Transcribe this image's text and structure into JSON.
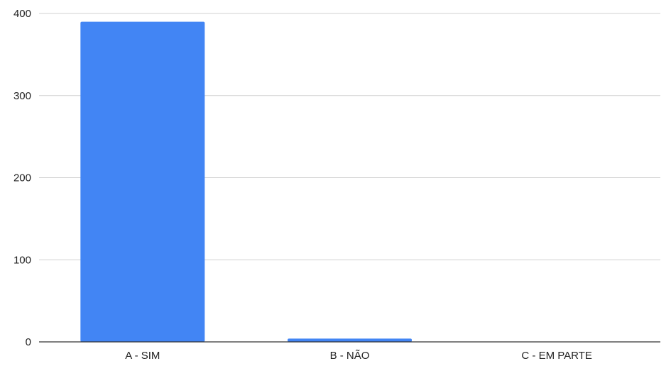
{
  "chart_data": {
    "type": "bar",
    "categories": [
      "A - SIM",
      "B - NÃO",
      "C - EM PARTE"
    ],
    "values": [
      390,
      4,
      0
    ],
    "ylim": [
      0,
      400
    ],
    "yticks": [
      0,
      100,
      200,
      300,
      400
    ],
    "ytick_labels": [
      "0",
      "100",
      "200",
      "300",
      "400"
    ],
    "grid": true,
    "legend": "none",
    "colors": {
      "bar": "#4285f4",
      "grid": "#d0d0d0",
      "axis": "#333333",
      "text": "#222222"
    }
  }
}
